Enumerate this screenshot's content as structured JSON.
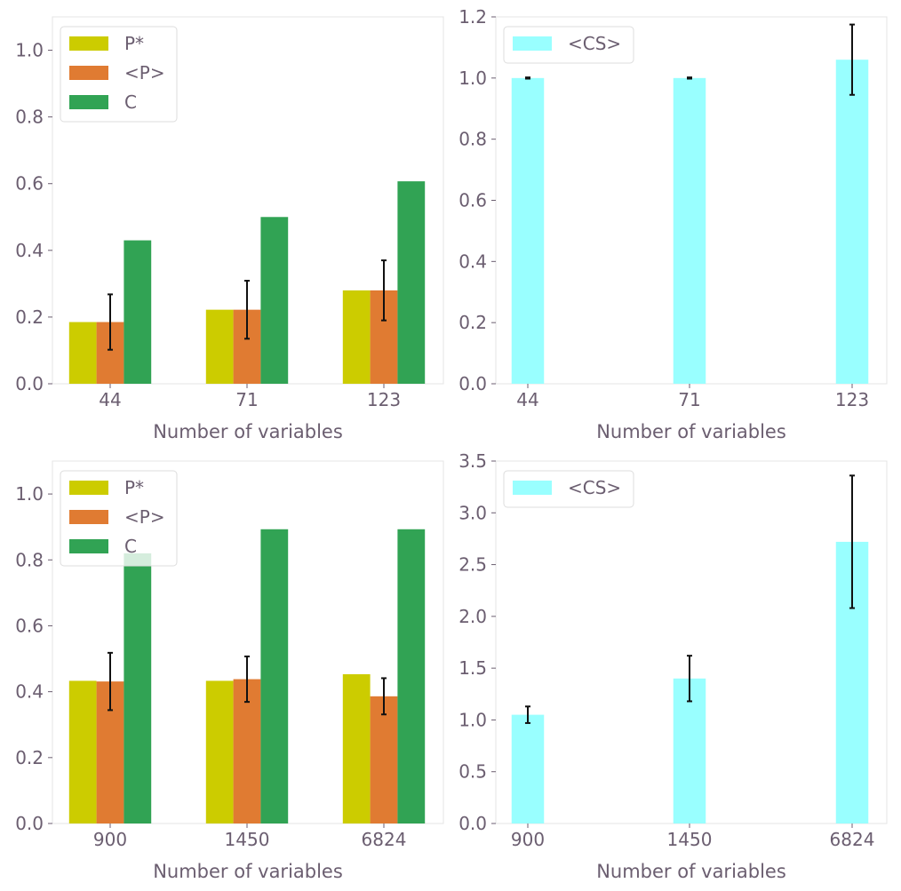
{
  "colors": {
    "p_star": "#cccc00",
    "p_mean": "#e07b32",
    "c": "#31a354",
    "cs": "#99ffff",
    "error_bar": "#111111",
    "text": "#6b5e70",
    "spine": "#e4e4e4"
  },
  "chart_data": [
    {
      "type": "bar",
      "categories": [
        "44",
        "71",
        "123"
      ],
      "xlabel": "Number of variables",
      "ylabel": "",
      "ylim": [
        0,
        1.1
      ],
      "yticks": [
        "0.0",
        "0.2",
        "0.4",
        "0.6",
        "0.8",
        "1.0"
      ],
      "legend_position": "top-left",
      "series": [
        {
          "name": "P*",
          "color_key": "p_star",
          "values": [
            0.185,
            0.222,
            0.28
          ]
        },
        {
          "name": "<P>",
          "color_key": "p_mean",
          "values": [
            0.185,
            0.222,
            0.28
          ],
          "errors": [
            0.083,
            0.087,
            0.09
          ]
        },
        {
          "name": "C",
          "color_key": "c",
          "values": [
            0.43,
            0.5,
            0.607
          ]
        }
      ]
    },
    {
      "type": "bar",
      "categories": [
        "44",
        "71",
        "123"
      ],
      "xlabel": "Number of variables",
      "ylabel": "",
      "ylim": [
        0,
        1.2
      ],
      "yticks": [
        "0.0",
        "0.2",
        "0.4",
        "0.6",
        "0.8",
        "1.0",
        "1.2"
      ],
      "legend_position": "top-left",
      "series": [
        {
          "name": "<CS>",
          "color_key": "cs",
          "values": [
            1.0,
            1.0,
            1.06
          ],
          "errors": [
            0.002,
            0.002,
            0.115
          ]
        }
      ]
    },
    {
      "type": "bar",
      "categories": [
        "900",
        "1450",
        "6824"
      ],
      "xlabel": "Number of variables",
      "ylabel": "",
      "ylim": [
        0,
        1.1
      ],
      "yticks": [
        "0.0",
        "0.2",
        "0.4",
        "0.6",
        "0.8",
        "1.0"
      ],
      "legend_position": "top-left",
      "series": [
        {
          "name": "P*",
          "color_key": "p_star",
          "values": [
            0.433,
            0.433,
            0.453
          ]
        },
        {
          "name": "<P>",
          "color_key": "p_mean",
          "values": [
            0.431,
            0.438,
            0.386
          ],
          "errors": [
            0.087,
            0.069,
            0.055
          ]
        },
        {
          "name": "C",
          "color_key": "c",
          "values": [
            0.82,
            0.893,
            0.893
          ]
        }
      ]
    },
    {
      "type": "bar",
      "categories": [
        "900",
        "1450",
        "6824"
      ],
      "xlabel": "Number of variables",
      "ylabel": "",
      "ylim": [
        0,
        3.5
      ],
      "yticks": [
        "0.0",
        "0.5",
        "1.0",
        "1.5",
        "2.0",
        "2.5",
        "3.0",
        "3.5"
      ],
      "legend_position": "top-left",
      "series": [
        {
          "name": "<CS>",
          "color_key": "cs",
          "values": [
            1.05,
            1.4,
            2.72
          ],
          "errors": [
            0.08,
            0.22,
            0.64
          ]
        }
      ]
    }
  ]
}
